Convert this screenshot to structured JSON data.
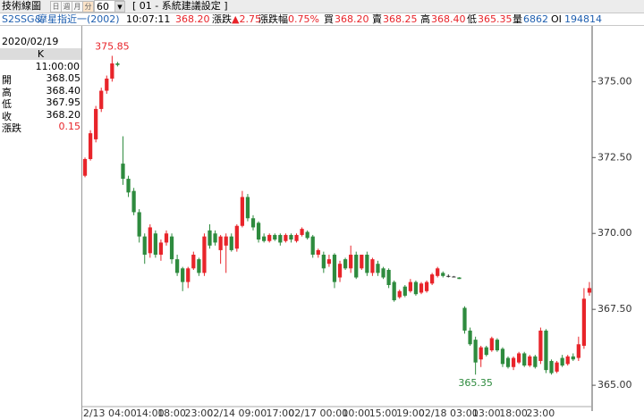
{
  "toolbar": {
    "title": "技術線圖",
    "periods": [
      "日",
      "週",
      "月",
      "分"
    ],
    "interval": "60",
    "setting": "[ 01 - 系統建議設定 ]"
  },
  "quote": {
    "symbol": "S2SSG&",
    "name": "摩星指近一(2002)",
    "time": "10:07:11",
    "last": "368.20",
    "change_label": "漲跌",
    "change": "▲2.75",
    "pct_label": "漲跌幅",
    "pct": "0.75%",
    "bid_label": "買",
    "bid": "368.20",
    "ask_label": "賣",
    "ask": "368.25",
    "high_label": "高",
    "high": "368.40",
    "low_label": "低",
    "low": "365.35",
    "volume_label": "量",
    "volume": "6862",
    "oi_label": "OI",
    "oi": "194814"
  },
  "info_panel": {
    "date": "2020/02/19",
    "header": "K",
    "time": "11:00:00",
    "rows": [
      [
        "開",
        "368.05"
      ],
      [
        "高",
        "368.40"
      ],
      [
        "低",
        "367.95"
      ],
      [
        "收",
        "368.20"
      ],
      [
        "漲跌",
        "0.15"
      ]
    ]
  },
  "chart_data": {
    "type": "candlestick",
    "up_color": "#e8242a",
    "down_color": "#2e8b3e",
    "ylim": [
      364.15,
      377.1
    ],
    "yticks": [
      {
        "value": 365,
        "label": "365.00"
      },
      {
        "value": 367.5,
        "label": "367.50"
      },
      {
        "value": 370,
        "label": "370.00"
      },
      {
        "value": 372.5,
        "label": "372.50"
      },
      {
        "value": 375,
        "label": "375.00"
      }
    ],
    "categories": [
      null,
      null,
      null,
      null,
      "02/13 04:00",
      null,
      null,
      null,
      null,
      null,
      null,
      null,
      "14:00",
      null,
      null,
      null,
      "18:00",
      null,
      null,
      null,
      null,
      "23:00",
      null,
      null,
      null,
      null,
      null,
      null,
      "02/14 09:00",
      null,
      null,
      null,
      null,
      null,
      null,
      null,
      "17:00",
      null,
      null,
      null,
      null,
      null,
      null,
      "02/17 00:00",
      null,
      null,
      null,
      null,
      null,
      null,
      "10:00",
      null,
      null,
      null,
      null,
      "15:00",
      null,
      null,
      null,
      null,
      "19:00",
      null,
      null,
      null,
      null,
      null,
      null,
      "02/18 03:00",
      null,
      null,
      null,
      null,
      null,
      null,
      "13:00",
      null,
      null,
      null,
      null,
      "18:00",
      null,
      null,
      null,
      null,
      "23:00",
      null,
      null,
      null,
      null,
      null,
      null,
      null,
      null,
      null
    ],
    "open": [
      371.9,
      372.45,
      373.1,
      374.1,
      374.7,
      375.1,
      375.6,
      372.3,
      371.8,
      371.4,
      370.7,
      369.9,
      369.35,
      370.0,
      369.3,
      369.7,
      369.9,
      369.15,
      368.85,
      368.4,
      368.85,
      369.15,
      368.7,
      370.1,
      370.0,
      369.45,
      369.6,
      369.9,
      369.5,
      370.25,
      371.2,
      370.5,
      370.35,
      369.9,
      369.75,
      369.95,
      369.95,
      369.75,
      369.95,
      369.75,
      369.95,
      370.05,
      369.9,
      369.3,
      369.3,
      369.0,
      369.3,
      368.55,
      369.15,
      368.85,
      369.3,
      368.85,
      369.3,
      368.7,
      369.0,
      368.85,
      368.8,
      368.4,
      367.9,
      368.25,
      368.1,
      368.4,
      368.05,
      368.1,
      368.35,
      368.6,
      368.7,
      368.6,
      368.58,
      368.55,
      367.55,
      366.8,
      366.5,
      365.85,
      366.25,
      366.15,
      366.5,
      366.2,
      365.9,
      365.6,
      365.75,
      366.05,
      365.65,
      365.95,
      365.8,
      366.8,
      365.8,
      365.45,
      365.9,
      365.7,
      365.95,
      365.9,
      366.3,
      368.05
    ],
    "high": [
      372.5,
      373.4,
      374.2,
      374.8,
      375.2,
      375.85,
      375.65,
      373.2,
      371.9,
      371.5,
      370.8,
      370.0,
      370.3,
      370.1,
      369.8,
      370.1,
      370.0,
      369.3,
      368.9,
      368.9,
      369.4,
      369.2,
      370.0,
      370.3,
      370.1,
      369.95,
      370.0,
      370.0,
      370.3,
      371.4,
      371.3,
      370.6,
      370.4,
      370.0,
      370.0,
      370.0,
      370.0,
      370.0,
      370.0,
      370.0,
      370.2,
      370.1,
      369.95,
      369.5,
      369.4,
      369.3,
      369.35,
      369.1,
      369.2,
      369.6,
      369.4,
      369.3,
      369.4,
      369.2,
      369.1,
      368.9,
      368.85,
      368.45,
      368.15,
      368.3,
      368.5,
      368.45,
      368.4,
      368.45,
      368.7,
      368.9,
      368.75,
      368.65,
      368.6,
      368.56,
      367.6,
      366.9,
      366.6,
      366.3,
      366.3,
      366.6,
      366.55,
      366.25,
      365.95,
      365.95,
      366.1,
      366.1,
      366.0,
      366.0,
      366.9,
      366.85,
      365.85,
      365.8,
      366.0,
      366.0,
      366.05,
      366.6,
      368.2,
      368.4
    ],
    "low": [
      371.85,
      372.4,
      373.0,
      374.0,
      374.6,
      375.0,
      375.5,
      371.6,
      371.2,
      370.6,
      369.7,
      369.0,
      369.2,
      369.2,
      369.1,
      369.6,
      369.0,
      368.6,
      368.1,
      368.2,
      368.8,
      368.6,
      368.6,
      369.5,
      369.6,
      369.0,
      368.7,
      369.4,
      369.4,
      370.2,
      370.4,
      370.1,
      369.7,
      369.7,
      369.7,
      369.75,
      369.6,
      369.7,
      369.7,
      369.7,
      369.9,
      369.8,
      369.2,
      369.2,
      368.7,
      368.9,
      368.2,
      368.4,
      368.8,
      368.7,
      368.5,
      368.8,
      368.6,
      368.6,
      368.6,
      368.5,
      368.2,
      367.75,
      367.85,
      367.9,
      368.05,
      367.95,
      368.0,
      368.05,
      368.3,
      368.55,
      368.55,
      368.55,
      368.55,
      368.5,
      366.7,
      366.3,
      365.35,
      365.6,
      365.95,
      366.1,
      366.1,
      365.6,
      365.55,
      365.5,
      365.7,
      365.6,
      365.6,
      365.55,
      365.7,
      365.4,
      365.35,
      365.4,
      365.6,
      365.65,
      365.8,
      365.8,
      366.2,
      367.95
    ],
    "close": [
      372.45,
      373.3,
      374.1,
      374.7,
      375.1,
      375.6,
      375.55,
      371.8,
      371.35,
      370.7,
      369.9,
      369.3,
      370.2,
      369.3,
      369.7,
      370.0,
      369.15,
      368.7,
      368.4,
      368.85,
      369.3,
      368.7,
      369.9,
      369.6,
      369.7,
      369.9,
      369.9,
      369.45,
      370.25,
      371.2,
      370.5,
      370.2,
      369.8,
      369.75,
      369.95,
      369.8,
      369.7,
      369.95,
      369.8,
      369.95,
      370.15,
      369.85,
      369.3,
      369.45,
      368.85,
      369.15,
      368.4,
      369.0,
      368.85,
      369.3,
      368.55,
      369.3,
      368.7,
      369.15,
      368.7,
      368.55,
      368.3,
      367.8,
      368.1,
      367.95,
      368.4,
      368.0,
      368.35,
      368.4,
      368.65,
      368.85,
      368.6,
      368.6,
      368.58,
      368.5,
      366.8,
      366.35,
      365.75,
      366.25,
      366.0,
      366.55,
      366.15,
      365.7,
      365.6,
      365.9,
      366.05,
      365.65,
      365.95,
      365.6,
      366.8,
      365.5,
      365.4,
      365.75,
      365.65,
      365.95,
      365.85,
      366.35,
      367.85,
      368.2
    ],
    "annotations": [
      {
        "field": "high",
        "index": 5
      },
      {
        "field": "low",
        "index": 72
      }
    ]
  }
}
